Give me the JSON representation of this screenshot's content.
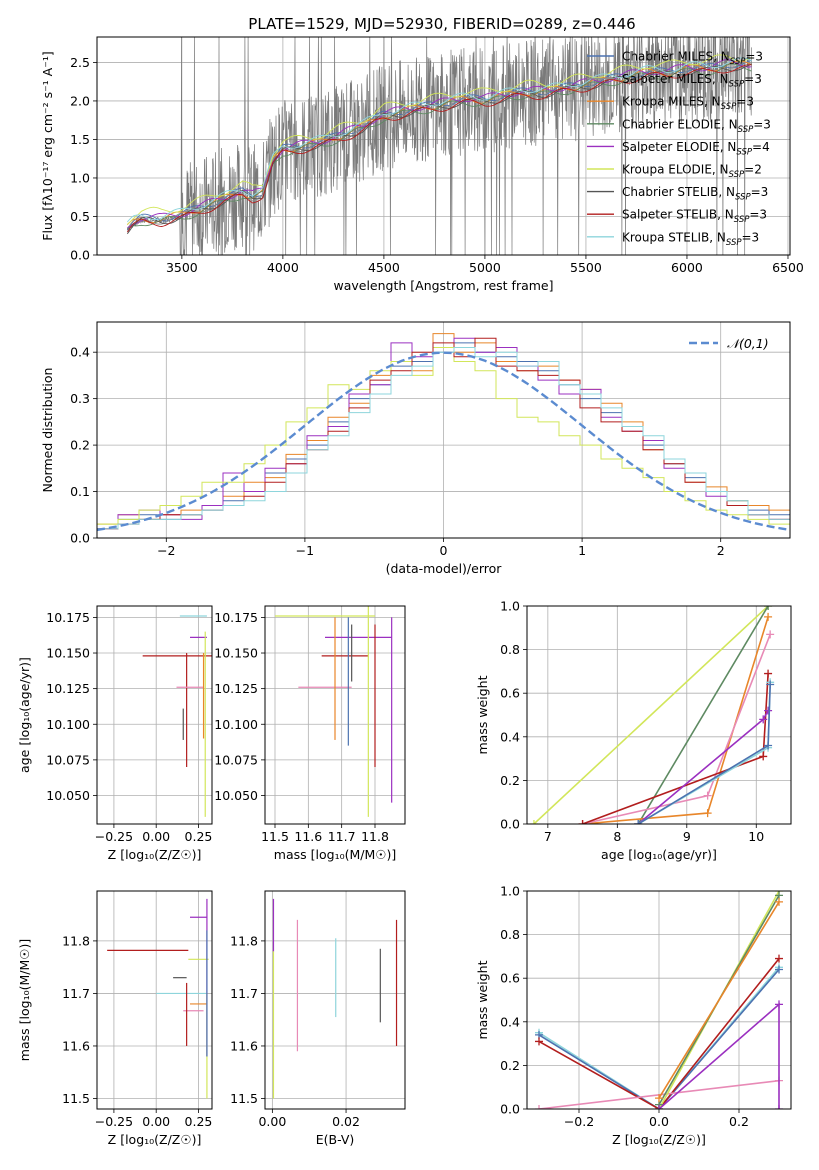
{
  "figure": {
    "title": "PLATE=1529, MJD=52930, FIBERID=0289, z=0.446"
  },
  "colors": {
    "Chabrier MILES": "#4C72B0",
    "Salpeter MILES": "#8E8E8E",
    "Kroupa MILES": "#E8862A",
    "Chabrier ELODIE": "#5E8A62",
    "Salpeter ELODIE": "#9B30C0",
    "Kroupa ELODIE": "#D2E65A",
    "Chabrier STELIB": "#555555",
    "Salpeter STELIB": "#B21E1E",
    "Kroupa STELIB": "#8ED5DC",
    "extra_pink": "#E88AB6",
    "normal_curve": "#5B8BD0",
    "data_spectrum": "#7A7A7A"
  },
  "chart_data": [
    {
      "id": "spectrum",
      "type": "line",
      "xlabel": "wavelength [Angstrom, rest frame]",
      "ylabel": "Flux [fλ10⁻¹⁷ erg cm⁻² s⁻¹ A⁻¹]",
      "xlim": [
        3080,
        6510
      ],
      "ylim": [
        0,
        2.83
      ],
      "xticks": [
        3500,
        4000,
        4500,
        5000,
        5500,
        6000,
        6500
      ],
      "yticks": [
        0.0,
        0.5,
        1.0,
        1.5,
        2.0,
        2.5
      ],
      "legend_position": "top-right",
      "legend": [
        {
          "label": "Chabrier MILES, N",
          "sub": "SSP",
          "tail": "=3",
          "color": "Chabrier MILES"
        },
        {
          "label": "Salpeter MILES, N",
          "sub": "SSP",
          "tail": "=3",
          "color": "Salpeter MILES"
        },
        {
          "label": "Kroupa MILES, N",
          "sub": "SSP",
          "tail": "=3",
          "color": "Kroupa MILES"
        },
        {
          "label": "Chabrier ELODIE, N",
          "sub": "SSP",
          "tail": "=3",
          "color": "Chabrier ELODIE"
        },
        {
          "label": "Salpeter ELODIE, N",
          "sub": "SSP",
          "tail": "=4",
          "color": "Salpeter ELODIE"
        },
        {
          "label": "Kroupa ELODIE, N",
          "sub": "SSP",
          "tail": "=2",
          "color": "Kroupa ELODIE"
        },
        {
          "label": "Chabrier STELIB, N",
          "sub": "SSP",
          "tail": "=3",
          "color": "Chabrier STELIB"
        },
        {
          "label": "Salpeter STELIB, N",
          "sub": "SSP",
          "tail": "=3",
          "color": "Salpeter STELIB"
        },
        {
          "label": "Kroupa STELIB, N",
          "sub": "SSP",
          "tail": "=3",
          "color": "Kroupa STELIB"
        }
      ],
      "model_continuum": {
        "x": [
          3220,
          3260,
          3300,
          3400,
          3500,
          3600,
          3700,
          3800,
          3850,
          3900,
          3950,
          4000,
          4100,
          4200,
          4300,
          4400,
          4500,
          4600,
          4700,
          4800,
          4900,
          5000,
          5100,
          5200,
          5300,
          5400,
          5500,
          5600,
          5700,
          5800,
          5900,
          6000,
          6100,
          6200,
          6300
        ],
        "y": [
          0.3,
          0.4,
          0.45,
          0.45,
          0.5,
          0.6,
          0.7,
          0.8,
          0.75,
          0.8,
          1.2,
          1.35,
          1.4,
          1.45,
          1.55,
          1.65,
          1.8,
          1.85,
          1.9,
          1.95,
          2.0,
          2.0,
          2.05,
          2.1,
          2.1,
          2.15,
          2.2,
          2.25,
          2.3,
          2.35,
          2.35,
          2.4,
          2.4,
          2.45,
          2.45
        ]
      }
    },
    {
      "id": "residuals",
      "type": "line",
      "xlabel": "(data-model)/error",
      "ylabel": "Normed distribution",
      "xlim": [
        -2.5,
        2.5
      ],
      "ylim": [
        0,
        0.465
      ],
      "xticks": [
        -2,
        -1,
        0,
        1,
        2
      ],
      "yticks": [
        0.0,
        0.1,
        0.2,
        0.3,
        0.4
      ],
      "legend_position": "top-right",
      "legend_label": "𝒩(0,1)",
      "series": [
        {
          "color": "Chabrier MILES",
          "values": [
            0.02,
            0.04,
            0.05,
            0.04,
            0.05,
            0.06,
            0.08,
            0.1,
            0.14,
            0.17,
            0.2,
            0.25,
            0.3,
            0.33,
            0.37,
            0.38,
            0.4,
            0.42,
            0.4,
            0.39,
            0.38,
            0.36,
            0.33,
            0.3,
            0.27,
            0.24,
            0.2,
            0.16,
            0.13,
            0.1,
            0.08,
            0.06,
            0.05
          ]
        },
        {
          "color": "Kroupa MILES",
          "values": [
            0.03,
            0.05,
            0.04,
            0.05,
            0.06,
            0.07,
            0.09,
            0.12,
            0.13,
            0.18,
            0.21,
            0.26,
            0.29,
            0.35,
            0.38,
            0.36,
            0.44,
            0.4,
            0.42,
            0.38,
            0.36,
            0.37,
            0.34,
            0.32,
            0.29,
            0.25,
            0.19,
            0.17,
            0.12,
            0.11,
            0.08,
            0.07,
            0.06
          ]
        },
        {
          "color": "Salpeter ELODIE",
          "values": [
            0.02,
            0.05,
            0.06,
            0.05,
            0.04,
            0.07,
            0.14,
            0.1,
            0.15,
            0.16,
            0.22,
            0.24,
            0.31,
            0.33,
            0.42,
            0.39,
            0.41,
            0.43,
            0.4,
            0.41,
            0.37,
            0.34,
            0.31,
            0.32,
            0.26,
            0.23,
            0.21,
            0.15,
            0.14,
            0.09,
            0.07,
            0.05,
            0.04
          ]
        },
        {
          "color": "Kroupa ELODIE",
          "values": [
            0.03,
            0.04,
            0.06,
            0.07,
            0.09,
            0.12,
            0.12,
            0.16,
            0.2,
            0.25,
            0.28,
            0.33,
            0.32,
            0.36,
            0.38,
            0.35,
            0.41,
            0.38,
            0.36,
            0.3,
            0.26,
            0.25,
            0.22,
            0.2,
            0.17,
            0.15,
            0.13,
            0.1,
            0.08,
            0.06,
            0.05,
            0.04,
            0.03
          ]
        },
        {
          "color": "Salpeter STELIB",
          "values": [
            0.02,
            0.03,
            0.04,
            0.05,
            0.05,
            0.06,
            0.07,
            0.09,
            0.12,
            0.16,
            0.19,
            0.23,
            0.28,
            0.34,
            0.36,
            0.4,
            0.42,
            0.39,
            0.43,
            0.37,
            0.36,
            0.35,
            0.34,
            0.28,
            0.25,
            0.23,
            0.19,
            0.16,
            0.12,
            0.1,
            0.07,
            0.05,
            0.04
          ]
        },
        {
          "color": "Kroupa STELIB",
          "values": [
            0.02,
            0.03,
            0.04,
            0.04,
            0.05,
            0.06,
            0.07,
            0.08,
            0.1,
            0.14,
            0.19,
            0.22,
            0.27,
            0.31,
            0.35,
            0.37,
            0.4,
            0.41,
            0.39,
            0.4,
            0.37,
            0.38,
            0.33,
            0.31,
            0.28,
            0.24,
            0.22,
            0.17,
            0.14,
            0.1,
            0.08,
            0.05,
            0.04
          ]
        }
      ]
    },
    {
      "id": "age_vs_Z",
      "type": "scatter",
      "xlabel": "Z [log₁₀(Z/Z☉)]",
      "ylabel": "age  [log₁₀(age/yr)]",
      "xlim": [
        -0.35,
        0.33
      ],
      "ylim": [
        10.03,
        10.183
      ],
      "xticks": [
        -0.25,
        0.0,
        0.25
      ],
      "yticks": [
        10.05,
        10.075,
        10.1,
        10.125,
        10.15,
        10.175
      ],
      "errorbars": [
        {
          "color": "Salpeter STELIB",
          "x": 0.15,
          "xerr": 0.23,
          "y": 10.148,
          "yerr": 0.0
        },
        {
          "color": "Salpeter STELIB",
          "x": 0.18,
          "xerr": 0.0,
          "y": 10.11,
          "yerr": 0.04
        },
        {
          "color": "Kroupa STELIB",
          "x": 0.22,
          "xerr": 0.08,
          "y": 10.176,
          "yerr": 0.0
        },
        {
          "color": "Salpeter ELODIE",
          "x": 0.25,
          "xerr": 0.05,
          "y": 10.161,
          "yerr": 0.0
        },
        {
          "color": "extra_pink",
          "x": 0.2,
          "xerr": 0.08,
          "y": 10.126,
          "yerr": 0.0
        },
        {
          "color": "Kroupa ELODIE",
          "x": 0.29,
          "xerr": 0.0,
          "y": 10.1,
          "yerr": 0.065
        },
        {
          "color": "Chabrier STELIB",
          "x": 0.16,
          "xerr": 0.0,
          "y": 10.1,
          "yerr": 0.011
        },
        {
          "color": "Kroupa MILES",
          "x": 0.28,
          "xerr": 0.0,
          "y": 10.12,
          "yerr": 0.03
        }
      ]
    },
    {
      "id": "age_vs_mass",
      "type": "scatter",
      "xlabel": "mass [log₁₀(M/M☉)]",
      "ylabel": "",
      "xlim": [
        11.47,
        11.89
      ],
      "ylim": [
        10.03,
        10.183
      ],
      "xticks": [
        11.5,
        11.6,
        11.7,
        11.8
      ],
      "yticks": [
        10.05,
        10.075,
        10.1,
        10.125,
        10.15,
        10.175
      ],
      "errorbars": [
        {
          "color": "Kroupa ELODIE",
          "x": 11.65,
          "xerr": 0.15,
          "y": 10.176,
          "yerr": 0.0
        },
        {
          "color": "Salpeter ELODIE",
          "x": 11.75,
          "xerr": 0.1,
          "y": 10.161,
          "yerr": 0.0
        },
        {
          "color": "Salpeter STELIB",
          "x": 11.71,
          "xerr": 0.07,
          "y": 10.148,
          "yerr": 0.0
        },
        {
          "color": "extra_pink",
          "x": 11.65,
          "xerr": 0.08,
          "y": 10.126,
          "yerr": 0.0
        },
        {
          "color": "Chabrier MILES",
          "x": 11.72,
          "xerr": 0.0,
          "y": 10.13,
          "yerr": 0.045
        },
        {
          "color": "Kroupa MILES",
          "x": 11.68,
          "xerr": 0.0,
          "y": 10.132,
          "yerr": 0.043
        },
        {
          "color": "Salpeter ELODIE",
          "x": 11.85,
          "xerr": 0.0,
          "y": 10.11,
          "yerr": 0.065
        },
        {
          "color": "Kroupa ELODIE",
          "x": 11.78,
          "xerr": 0.0,
          "y": 10.11,
          "yerr": 0.075
        },
        {
          "color": "Salpeter STELIB",
          "x": 11.8,
          "xerr": 0.0,
          "y": 10.12,
          "yerr": 0.05
        },
        {
          "color": "Chabrier STELIB",
          "x": 11.73,
          "xerr": 0.0,
          "y": 10.15,
          "yerr": 0.02
        }
      ]
    },
    {
      "id": "weight_vs_age",
      "type": "line",
      "xlabel": "age  [log₁₀(age/yr)]",
      "ylabel": "mass weight",
      "xlim": [
        6.7,
        10.5
      ],
      "ylim": [
        0,
        1.0
      ],
      "xticks": [
        7,
        8,
        9,
        10
      ],
      "yticks": [
        0.0,
        0.2,
        0.4,
        0.6,
        0.8,
        1.0
      ],
      "series": [
        {
          "color": "Kroupa ELODIE",
          "x": [
            6.8,
            10.17
          ],
          "y": [
            0.0,
            1.0
          ]
        },
        {
          "color": "Chabrier ELODIE",
          "x": [
            8.3,
            10.17
          ],
          "y": [
            0.0,
            1.0
          ]
        },
        {
          "color": "Kroupa MILES",
          "x": [
            7.5,
            9.3,
            10.17
          ],
          "y": [
            0.0,
            0.05,
            0.95
          ]
        },
        {
          "color": "extra_pink",
          "x": [
            7.5,
            9.3,
            10.2
          ],
          "y": [
            0.0,
            0.13,
            0.87
          ]
        },
        {
          "color": "Salpeter STELIB",
          "x": [
            7.5,
            10.1,
            10.17
          ],
          "y": [
            0.0,
            0.31,
            0.69
          ]
        },
        {
          "color": "Salpeter ELODIE",
          "x": [
            8.3,
            10.1,
            10.17
          ],
          "y": [
            0.0,
            0.48,
            0.52
          ]
        },
        {
          "color": "Kroupa STELIB",
          "x": [
            8.3,
            10.17,
            10.2
          ],
          "y": [
            0.0,
            0.35,
            0.65
          ]
        },
        {
          "color": "Chabrier MILES",
          "x": [
            8.3,
            10.17,
            10.2
          ],
          "y": [
            0.0,
            0.36,
            0.64
          ]
        }
      ]
    },
    {
      "id": "mass_vs_Z",
      "type": "scatter",
      "xlabel": "Z [log₁₀(Z/Z☉)]",
      "ylabel": "mass [log₁₀(M/M☉)]",
      "xlim": [
        -0.35,
        0.33
      ],
      "ylim": [
        11.48,
        11.895
      ],
      "xticks": [
        -0.25,
        0.0,
        0.25
      ],
      "yticks": [
        11.5,
        11.6,
        11.7,
        11.8
      ],
      "errorbars": [
        {
          "color": "Salpeter STELIB",
          "x": -0.05,
          "xerr": 0.24,
          "y": 11.782,
          "yerr": 0.0
        },
        {
          "color": "Salpeter ELODIE",
          "x": 0.25,
          "xerr": 0.05,
          "y": 11.845,
          "yerr": 0.0
        },
        {
          "color": "Kroupa ELODIE",
          "x": 0.25,
          "xerr": 0.06,
          "y": 11.765,
          "yerr": 0.0
        },
        {
          "color": "Chabrier STELIB",
          "x": 0.14,
          "xerr": 0.04,
          "y": 11.73,
          "yerr": 0.0
        },
        {
          "color": "Kroupa STELIB",
          "x": 0.15,
          "xerr": 0.15,
          "y": 11.7,
          "yerr": 0.0
        },
        {
          "color": "Kroupa MILES",
          "x": 0.25,
          "xerr": 0.05,
          "y": 11.68,
          "yerr": 0.0
        },
        {
          "color": "extra_pink",
          "x": 0.22,
          "xerr": 0.06,
          "y": 11.667,
          "yerr": 0.0
        },
        {
          "color": "Salpeter STELIB",
          "x": 0.18,
          "xerr": 0.0,
          "y": 11.66,
          "yerr": 0.06
        },
        {
          "color": "Salpeter ELODIE",
          "x": 0.3,
          "xerr": 0.0,
          "y": 11.73,
          "yerr": 0.15
        },
        {
          "color": "Kroupa ELODIE",
          "x": 0.3,
          "xerr": 0.0,
          "y": 11.6,
          "yerr": 0.1
        },
        {
          "color": "Chabrier MILES",
          "x": 0.3,
          "xerr": 0.0,
          "y": 11.7,
          "yerr": 0.12
        }
      ]
    },
    {
      "id": "mass_vs_EBV",
      "type": "scatter",
      "xlabel": "E(B-V)",
      "ylabel": "",
      "xlim": [
        -0.002,
        0.036
      ],
      "ylim": [
        11.48,
        11.895
      ],
      "xticks": [
        0.0,
        0.02
      ],
      "yticks": [
        11.5,
        11.6,
        11.7,
        11.8
      ],
      "errorbars": [
        {
          "color": "Salpeter ELODIE",
          "x": 0.0003,
          "xerr": 0.0,
          "y": 11.83,
          "yerr": 0.05
        },
        {
          "color": "Kroupa ELODIE",
          "x": 0.0003,
          "xerr": 0.0,
          "y": 11.64,
          "yerr": 0.14
        },
        {
          "color": "extra_pink",
          "x": 0.0068,
          "xerr": 0.0,
          "y": 11.715,
          "yerr": 0.125
        },
        {
          "color": "Kroupa STELIB",
          "x": 0.0172,
          "xerr": 0.0,
          "y": 11.73,
          "yerr": 0.075
        },
        {
          "color": "Chabrier STELIB",
          "x": 0.0293,
          "xerr": 0.0,
          "y": 11.715,
          "yerr": 0.07
        },
        {
          "color": "Salpeter STELIB",
          "x": 0.0337,
          "xerr": 0.0,
          "y": 11.72,
          "yerr": 0.12
        }
      ]
    },
    {
      "id": "weight_vs_Z",
      "type": "line",
      "xlabel": "Z [log₁₀(Z/Z☉)]",
      "ylabel": "mass weight",
      "xlim": [
        -0.33,
        0.33
      ],
      "ylim": [
        0,
        1.0
      ],
      "xticks": [
        -0.2,
        0.0,
        0.2
      ],
      "yticks": [
        0.0,
        0.2,
        0.4,
        0.6,
        0.8,
        1.0
      ],
      "series": [
        {
          "color": "Kroupa STELIB",
          "x": [
            -0.3,
            0.0,
            0.3
          ],
          "y": [
            0.35,
            0.0,
            0.65
          ]
        },
        {
          "color": "Chabrier MILES",
          "x": [
            -0.3,
            0.0,
            0.3
          ],
          "y": [
            0.34,
            0.0,
            0.64
          ]
        },
        {
          "color": "Salpeter STELIB",
          "x": [
            -0.3,
            0.0,
            0.3
          ],
          "y": [
            0.31,
            0.0,
            0.69
          ]
        },
        {
          "color": "extra_pink",
          "x": [
            -0.3,
            0.3
          ],
          "y": [
            0.0,
            0.13
          ]
        },
        {
          "color": "Kroupa ELODIE",
          "x": [
            0.0,
            0.3
          ],
          "y": [
            0.0,
            1.0
          ]
        },
        {
          "color": "Chabrier ELODIE",
          "x": [
            0.0,
            0.3
          ],
          "y": [
            0.02,
            0.98
          ]
        },
        {
          "color": "Kroupa MILES",
          "x": [
            0.0,
            0.3
          ],
          "y": [
            0.05,
            0.95
          ]
        },
        {
          "color": "Salpeter ELODIE",
          "x": [
            0.0,
            0.3,
            0.3
          ],
          "y": [
            0.0,
            0.48,
            0.0
          ]
        }
      ]
    }
  ]
}
